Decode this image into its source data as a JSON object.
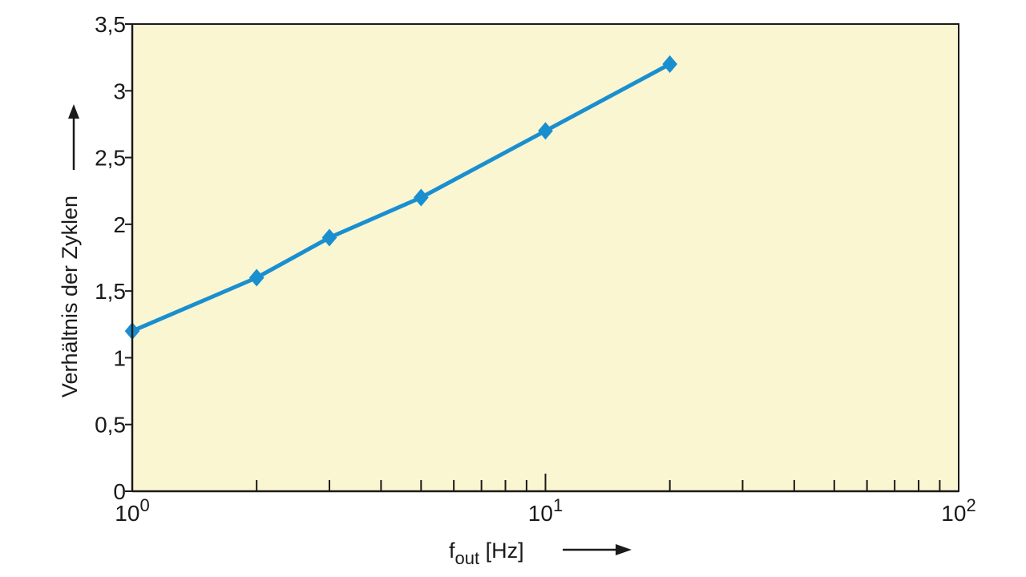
{
  "chart_data": {
    "type": "line",
    "x_scale": "log",
    "title": "",
    "xlabel": {
      "main": "f",
      "sub": "out",
      "unit": " [Hz]"
    },
    "ylabel": "Verhältnis der Zyklen",
    "xlim": [
      1,
      100
    ],
    "ylim": [
      0,
      3.5
    ],
    "x_tick_labels": [
      {
        "value": 1,
        "base": "10",
        "exp": "0"
      },
      {
        "value": 10,
        "base": "10",
        "exp": "1"
      },
      {
        "value": 100,
        "base": "10",
        "exp": "2"
      }
    ],
    "y_ticks": [
      {
        "value": 0,
        "label": "0"
      },
      {
        "value": 0.5,
        "label": "0,5"
      },
      {
        "value": 1,
        "label": "1"
      },
      {
        "value": 1.5,
        "label": "1,5"
      },
      {
        "value": 2,
        "label": "2"
      },
      {
        "value": 2.5,
        "label": "2,5"
      },
      {
        "value": 3,
        "label": "3"
      },
      {
        "value": 3.5,
        "label": "3,5"
      }
    ],
    "series": [
      {
        "x": [
          1,
          2,
          3,
          5,
          10,
          20
        ],
        "y": [
          1.2,
          1.6,
          1.9,
          2.2,
          2.7,
          3.2
        ]
      }
    ],
    "grid": false,
    "colors": {
      "plot_background": "#fbf6d2",
      "line": "#1a8fd0",
      "axis": "#1a1a1a"
    }
  }
}
